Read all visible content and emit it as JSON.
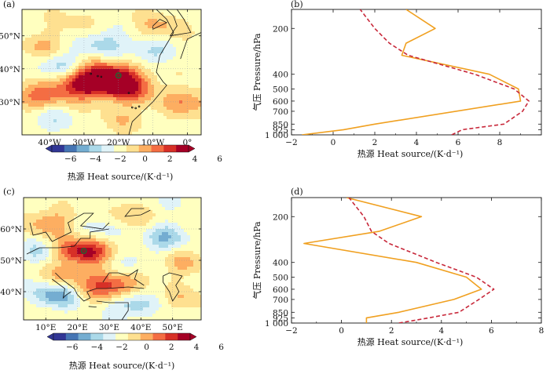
{
  "chart_data": [
    {
      "panel": "(a)",
      "type": "heatmap",
      "x_ticks": [
        "40°W",
        "30°W",
        "20°W",
        "10°W",
        "0°"
      ],
      "x_tick_values": [
        -40,
        -30,
        -20,
        -10,
        0
      ],
      "xlim": [
        -48,
        4
      ],
      "y_ticks": [
        "30°N",
        "40°N",
        "50°N"
      ],
      "y_tick_values": [
        30,
        40,
        50
      ],
      "ylim": [
        20,
        58
      ],
      "marker": {
        "lon": -20,
        "lat": 38
      },
      "anomalies": [
        {
          "lon": -22,
          "lat": 37,
          "value": 7
        },
        {
          "lon": -31,
          "lat": 35,
          "value": 5
        },
        {
          "lon": -16,
          "lat": 33,
          "value": 3
        },
        {
          "lon": -27,
          "lat": 43,
          "value": 1.5
        },
        {
          "lon": -44,
          "lat": 31,
          "value": 3
        },
        {
          "lon": 0,
          "lat": 30,
          "value": 3
        },
        {
          "lon": -36,
          "lat": 41,
          "value": -3
        },
        {
          "lon": -25,
          "lat": 47,
          "value": -3
        },
        {
          "lon": -41,
          "lat": 47,
          "value": 2
        },
        {
          "lon": -8,
          "lat": 53,
          "value": 2
        },
        {
          "lon": -11,
          "lat": 45,
          "value": -2
        },
        {
          "lon": -40,
          "lat": 25,
          "value": -1.5
        },
        {
          "lon": -18,
          "lat": 25,
          "value": 1.5
        },
        {
          "lon": -32,
          "lat": 55,
          "value": 1
        }
      ],
      "colorbar": {
        "label": "热源 Heat source/(K·d⁻¹)",
        "ticks": [
          "−6",
          "−4",
          "−2",
          "0",
          "2",
          "4",
          "6"
        ],
        "colors": [
          "#313695",
          "#4575b4",
          "#74add1",
          "#abd9e9",
          "#e0f3f8",
          "#ffffbf",
          "#fee090",
          "#fdae61",
          "#f46d43",
          "#d73027",
          "#a50026"
        ]
      }
    },
    {
      "panel": "(b)",
      "type": "line",
      "xlabel": "热源 Heat source/(K·d⁻¹)",
      "ylabel": "气压 Pressure/hPa",
      "xlim": [
        -2,
        10
      ],
      "x_ticks": [
        -2,
        0,
        2,
        4,
        6,
        8
      ],
      "ylim": [
        1000,
        150
      ],
      "y_ticks": [
        {
          "value": 200,
          "label": "200"
        },
        {
          "value": 400,
          "label": "400"
        },
        {
          "value": 500,
          "label": "500"
        },
        {
          "value": 600,
          "label": "600"
        },
        {
          "value": 700,
          "label": "700"
        },
        {
          "value": 850,
          "label": "850"
        },
        {
          "value": 925,
          "label": "925"
        },
        {
          "value": 1000,
          "label": "1 000"
        }
      ],
      "series": [
        {
          "style": "solid",
          "color": "#f0a020",
          "values": [
            [
              -1.5,
              1000
            ],
            [
              0.5,
              925
            ],
            [
              2,
              850
            ],
            [
              9,
              600
            ],
            [
              8.9,
              500
            ],
            [
              7.5,
              400
            ],
            [
              3.3,
              300
            ],
            [
              3.5,
              250
            ],
            [
              4.9,
              200
            ],
            [
              3.5,
              150
            ]
          ]
        },
        {
          "style": "dashed",
          "color": "#c8283a",
          "values": [
            [
              5.7,
              1000
            ],
            [
              6.2,
              925
            ],
            [
              8.2,
              850
            ],
            [
              9.1,
              700
            ],
            [
              9.4,
              600
            ],
            [
              8.7,
              500
            ],
            [
              6.8,
              400
            ],
            [
              3.6,
              300
            ],
            [
              2.7,
              250
            ],
            [
              2.0,
              200
            ],
            [
              1.3,
              150
            ]
          ]
        }
      ]
    },
    {
      "panel": "(c)",
      "type": "heatmap",
      "x_ticks": [
        "10°E",
        "20°E",
        "30°E",
        "40°E",
        "50°E"
      ],
      "x_tick_values": [
        10,
        20,
        30,
        40,
        50
      ],
      "xlim": [
        3,
        59
      ],
      "y_ticks": [
        "40°N",
        "50°N",
        "60°N"
      ],
      "y_tick_values": [
        40,
        50,
        60
      ],
      "ylim": [
        31,
        70
      ],
      "marker": {
        "lon": 22,
        "lat": 53
      },
      "anomalies": [
        {
          "lon": 22,
          "lat": 53,
          "value": 6
        },
        {
          "lon": 30,
          "lat": 42,
          "value": 5
        },
        {
          "lon": 11,
          "lat": 62,
          "value": 3
        },
        {
          "lon": 37,
          "lat": 64,
          "value": 2.5
        },
        {
          "lon": 16,
          "lat": 45,
          "value": 2
        },
        {
          "lon": 53,
          "lat": 49,
          "value": 2
        },
        {
          "lon": 13,
          "lat": 39,
          "value": -4
        },
        {
          "lon": 37,
          "lat": 36,
          "value": -3
        },
        {
          "lon": 47,
          "lat": 57,
          "value": -3
        },
        {
          "lon": 29,
          "lat": 60,
          "value": -2
        },
        {
          "lon": 8,
          "lat": 53,
          "value": -2
        },
        {
          "lon": 35,
          "lat": 48,
          "value": -1.5
        },
        {
          "lon": 54,
          "lat": 38,
          "value": 1.5
        },
        {
          "lon": 45,
          "lat": 68,
          "value": -1
        }
      ],
      "colorbar": {
        "label": "热源 Heat source/(K·d⁻¹)",
        "ticks": [
          "−6",
          "−4",
          "−2",
          "0",
          "2",
          "4",
          "6"
        ],
        "colors": [
          "#313695",
          "#4575b4",
          "#74add1",
          "#abd9e9",
          "#e0f3f8",
          "#ffffbf",
          "#fee090",
          "#fdae61",
          "#f46d43",
          "#d73027",
          "#a50026"
        ]
      }
    },
    {
      "panel": "(d)",
      "type": "line",
      "xlabel": "热源 Heat source/(K·d⁻¹)",
      "ylabel": "气压 Pressure/hPa",
      "xlim": [
        -2,
        8
      ],
      "x_ticks": [
        -2,
        0,
        2,
        4,
        6,
        8
      ],
      "ylim": [
        1000,
        150
      ],
      "y_ticks": [
        {
          "value": 200,
          "label": "200"
        },
        {
          "value": 400,
          "label": "400"
        },
        {
          "value": 500,
          "label": "500"
        },
        {
          "value": 600,
          "label": "600"
        },
        {
          "value": 700,
          "label": "700"
        },
        {
          "value": 850,
          "label": "850"
        },
        {
          "value": 925,
          "label": "925"
        },
        {
          "value": 1000,
          "label": "1 000"
        }
      ],
      "series": [
        {
          "style": "solid",
          "color": "#f0a020",
          "values": [
            [
              1.0,
              1000
            ],
            [
              1.0,
              925
            ],
            [
              2.3,
              850
            ],
            [
              4.5,
              700
            ],
            [
              5.6,
              600
            ],
            [
              5.0,
              500
            ],
            [
              3.0,
              400
            ],
            [
              -1.5,
              300
            ],
            [
              1.5,
              250
            ],
            [
              3.2,
              200
            ],
            [
              0.2,
              150
            ]
          ]
        },
        {
          "style": "dashed",
          "color": "#c8283a",
          "values": [
            [
              2.3,
              1000
            ],
            [
              3.5,
              925
            ],
            [
              4.7,
              850
            ],
            [
              5.5,
              700
            ],
            [
              6.1,
              600
            ],
            [
              5.4,
              500
            ],
            [
              3.8,
              400
            ],
            [
              1.9,
              300
            ],
            [
              1.2,
              250
            ],
            [
              0.9,
              200
            ],
            [
              0.3,
              150
            ]
          ]
        }
      ]
    }
  ]
}
